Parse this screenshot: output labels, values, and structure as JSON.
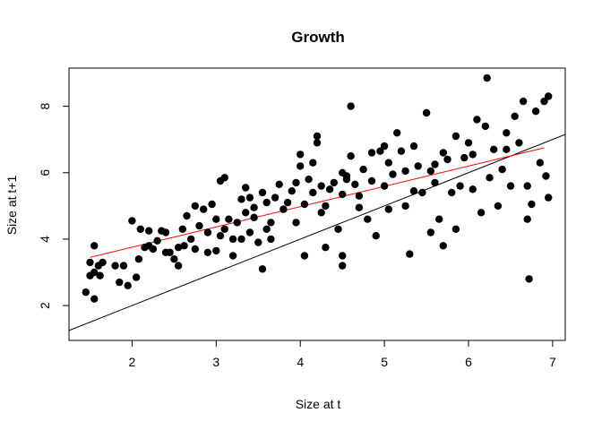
{
  "chart_data": {
    "type": "scatter",
    "title": "Growth",
    "xlabel": "Size at t",
    "ylabel": "Size at t+1",
    "xlim": [
      1.25,
      7.15
    ],
    "ylim": [
      0.95,
      9.15
    ],
    "x_ticks": [
      "2",
      "3",
      "4",
      "5",
      "6",
      "7"
    ],
    "y_ticks": [
      "2",
      "4",
      "6",
      "8"
    ],
    "grid": false,
    "legend": "none",
    "colors": {
      "points": "#000000",
      "identity_line": "#000000",
      "fit_line": "#ff0000"
    },
    "identity_line": {
      "intercept": 0,
      "slope": 1
    },
    "fit_line": {
      "x": [
        1.5,
        6.9
      ],
      "y": [
        3.45,
        6.75
      ]
    },
    "points": [
      [
        1.45,
        2.4
      ],
      [
        1.5,
        2.9
      ],
      [
        1.55,
        2.2
      ],
      [
        1.5,
        3.3
      ],
      [
        1.55,
        3.8
      ],
      [
        1.6,
        3.2
      ],
      [
        1.62,
        2.9
      ],
      [
        1.65,
        3.3
      ],
      [
        1.55,
        3.0
      ],
      [
        1.8,
        3.2
      ],
      [
        1.85,
        2.7
      ],
      [
        1.9,
        3.2
      ],
      [
        1.95,
        2.6
      ],
      [
        2.0,
        4.55
      ],
      [
        2.05,
        2.85
      ],
      [
        2.08,
        3.4
      ],
      [
        2.1,
        4.3
      ],
      [
        2.15,
        3.75
      ],
      [
        2.2,
        3.8
      ],
      [
        2.25,
        3.7
      ],
      [
        2.3,
        3.95
      ],
      [
        2.35,
        4.25
      ],
      [
        2.4,
        4.2
      ],
      [
        2.4,
        3.6
      ],
      [
        2.45,
        3.6
      ],
      [
        2.5,
        3.4
      ],
      [
        2.55,
        3.75
      ],
      [
        2.55,
        3.2
      ],
      [
        2.6,
        4.3
      ],
      [
        2.62,
        3.8
      ],
      [
        2.65,
        4.7
      ],
      [
        2.7,
        4.0
      ],
      [
        2.75,
        5.0
      ],
      [
        2.75,
        3.7
      ],
      [
        2.8,
        4.4
      ],
      [
        2.85,
        4.9
      ],
      [
        2.9,
        4.2
      ],
      [
        2.95,
        5.05
      ],
      [
        3.0,
        4.6
      ],
      [
        3.0,
        3.65
      ],
      [
        3.05,
        4.1
      ],
      [
        3.05,
        5.75
      ],
      [
        3.1,
        5.85
      ],
      [
        3.1,
        4.3
      ],
      [
        3.15,
        4.6
      ],
      [
        3.2,
        4.0
      ],
      [
        3.2,
        3.5
      ],
      [
        3.25,
        4.5
      ],
      [
        3.3,
        5.2
      ],
      [
        3.3,
        4.0
      ],
      [
        3.35,
        4.8
      ],
      [
        3.35,
        5.55
      ],
      [
        3.4,
        5.25
      ],
      [
        3.4,
        4.2
      ],
      [
        3.45,
        4.65
      ],
      [
        3.5,
        3.9
      ],
      [
        3.55,
        5.4
      ],
      [
        3.55,
        3.1
      ],
      [
        3.6,
        4.3
      ],
      [
        3.6,
        5.1
      ],
      [
        3.65,
        4.5
      ],
      [
        3.7,
        5.25
      ],
      [
        3.75,
        5.65
      ],
      [
        3.8,
        4.9
      ],
      [
        3.85,
        5.1
      ],
      [
        3.9,
        5.45
      ],
      [
        3.95,
        5.7
      ],
      [
        3.95,
        4.5
      ],
      [
        4.0,
        6.55
      ],
      [
        4.0,
        6.2
      ],
      [
        4.05,
        5.05
      ],
      [
        4.05,
        3.5
      ],
      [
        4.1,
        5.8
      ],
      [
        4.15,
        5.4
      ],
      [
        4.15,
        6.3
      ],
      [
        4.2,
        7.1
      ],
      [
        4.2,
        6.9
      ],
      [
        4.25,
        5.6
      ],
      [
        4.3,
        5.0
      ],
      [
        4.3,
        3.75
      ],
      [
        4.35,
        5.5
      ],
      [
        4.4,
        5.7
      ],
      [
        4.45,
        4.3
      ],
      [
        4.5,
        6.0
      ],
      [
        4.5,
        5.35
      ],
      [
        4.5,
        3.5
      ],
      [
        4.5,
        3.2
      ],
      [
        4.55,
        5.8
      ],
      [
        4.6,
        8.0
      ],
      [
        4.6,
        6.5
      ],
      [
        4.65,
        5.65
      ],
      [
        4.7,
        5.3
      ],
      [
        4.75,
        6.1
      ],
      [
        4.8,
        4.6
      ],
      [
        4.85,
        6.6
      ],
      [
        4.85,
        5.75
      ],
      [
        4.9,
        4.1
      ],
      [
        4.95,
        6.65
      ],
      [
        5.0,
        5.6
      ],
      [
        5.05,
        6.3
      ],
      [
        5.05,
        4.9
      ],
      [
        5.1,
        5.95
      ],
      [
        5.15,
        7.2
      ],
      [
        5.2,
        6.65
      ],
      [
        5.25,
        5.0
      ],
      [
        5.25,
        6.05
      ],
      [
        5.3,
        3.55
      ],
      [
        5.35,
        6.8
      ],
      [
        5.4,
        6.2
      ],
      [
        5.45,
        5.4
      ],
      [
        5.5,
        7.8
      ],
      [
        5.55,
        6.05
      ],
      [
        5.55,
        4.2
      ],
      [
        5.6,
        5.7
      ],
      [
        5.65,
        4.6
      ],
      [
        5.7,
        6.6
      ],
      [
        5.7,
        3.8
      ],
      [
        5.75,
        6.4
      ],
      [
        5.8,
        5.4
      ],
      [
        5.85,
        4.3
      ],
      [
        5.85,
        7.1
      ],
      [
        5.9,
        5.6
      ],
      [
        5.95,
        6.45
      ],
      [
        6.0,
        6.9
      ],
      [
        6.05,
        5.5
      ],
      [
        6.1,
        7.6
      ],
      [
        6.15,
        4.8
      ],
      [
        6.2,
        7.4
      ],
      [
        6.22,
        8.85
      ],
      [
        6.25,
        5.85
      ],
      [
        6.3,
        6.7
      ],
      [
        6.35,
        5.0
      ],
      [
        6.4,
        6.1
      ],
      [
        6.45,
        7.2
      ],
      [
        6.5,
        5.6
      ],
      [
        6.55,
        7.7
      ],
      [
        6.6,
        6.9
      ],
      [
        6.65,
        8.15
      ],
      [
        6.7,
        5.6
      ],
      [
        6.7,
        4.6
      ],
      [
        6.72,
        2.8
      ],
      [
        6.75,
        5.05
      ],
      [
        6.8,
        7.85
      ],
      [
        6.85,
        6.3
      ],
      [
        6.9,
        8.15
      ],
      [
        6.92,
        5.9
      ],
      [
        6.95,
        8.3
      ],
      [
        6.95,
        5.25
      ],
      [
        2.2,
        4.25
      ],
      [
        2.9,
        3.6
      ],
      [
        3.45,
        4.95
      ],
      [
        3.65,
        4.0
      ],
      [
        4.25,
        4.8
      ],
      [
        4.55,
        5.9
      ],
      [
        4.7,
        4.95
      ],
      [
        5.0,
        6.8
      ],
      [
        5.35,
        5.45
      ],
      [
        5.6,
        6.25
      ],
      [
        6.05,
        6.55
      ],
      [
        6.45,
        6.7
      ]
    ]
  }
}
